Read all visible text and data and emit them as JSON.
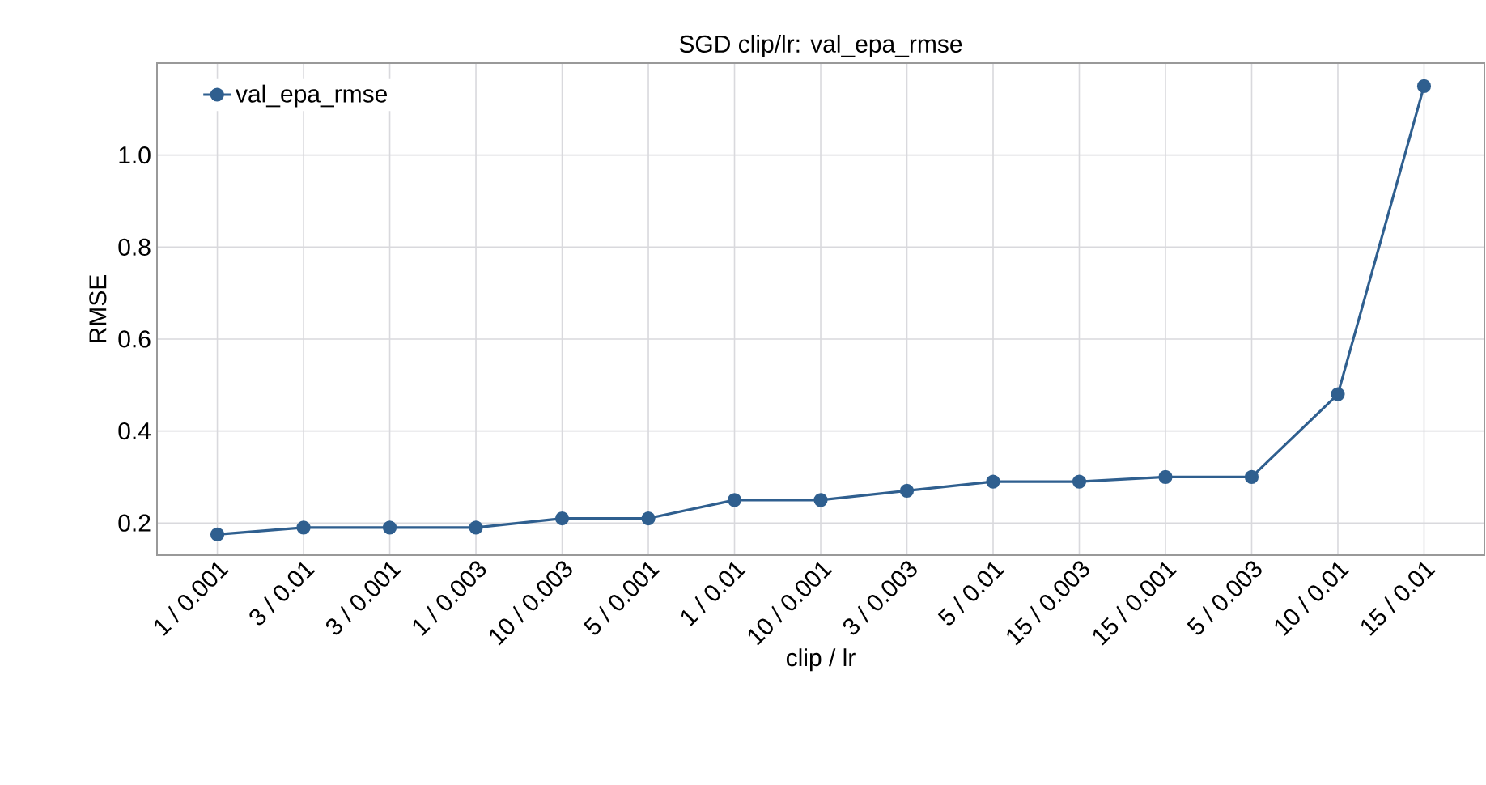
{
  "chart_data": {
    "type": "line",
    "title": "SGD clip/lr: val_epa_rmse",
    "xlabel": "clip / lr",
    "ylabel": "RMSE",
    "categories": [
      "1 / 0.001",
      "3 / 0.01",
      "3 / 0.001",
      "1 / 0.003",
      "10 / 0.003",
      "5 / 0.001",
      "1 / 0.01",
      "10 / 0.001",
      "3 / 0.003",
      "5 / 0.01",
      "15 / 0.003",
      "15 / 0.001",
      "5 / 0.003",
      "10 / 0.01",
      "15 / 0.01"
    ],
    "series": [
      {
        "name": "val_epa_rmse",
        "color": "#2f5f8f",
        "values": [
          0.175,
          0.19,
          0.19,
          0.19,
          0.21,
          0.21,
          0.25,
          0.25,
          0.27,
          0.29,
          0.29,
          0.3,
          0.3,
          0.48,
          1.15
        ]
      }
    ],
    "ylim": [
      0.13,
      1.2
    ],
    "yticks": [
      0.2,
      0.4,
      0.6,
      0.8,
      {
        "value": 1.0,
        "label": "1.0"
      }
    ],
    "grid": true,
    "legend": "top left",
    "marker": "circle",
    "line_style": "solid"
  }
}
